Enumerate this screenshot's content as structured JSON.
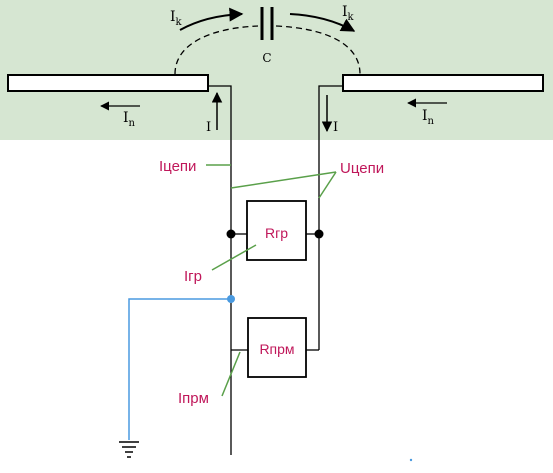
{
  "colors": {
    "top_band": "#d6e6d2",
    "wire": "#000000",
    "callout_line": "#5aa04a",
    "label_magenta": "#c0175a",
    "ground_wire": "#4a9ae0"
  },
  "labels": {
    "capacitor": "C",
    "current_k_left": {
      "main": "I",
      "sub": "k"
    },
    "current_k_right": {
      "main": "I",
      "sub": "k"
    },
    "current_n_left": {
      "main": "I",
      "sub": "n"
    },
    "current_n_right": {
      "main": "I",
      "sub": "n"
    },
    "current_left_lead": "I",
    "current_right_lead": "I",
    "i_circuit": "Iцепи",
    "u_circuit": "Uцепи",
    "r_gr": "Rгр",
    "i_gr": "Iгр",
    "r_prm": "Rпрм",
    "i_prm": "Iпрм"
  },
  "icons": {
    "ground": "ground-symbol-icon",
    "capacitor": "capacitor-icon"
  }
}
